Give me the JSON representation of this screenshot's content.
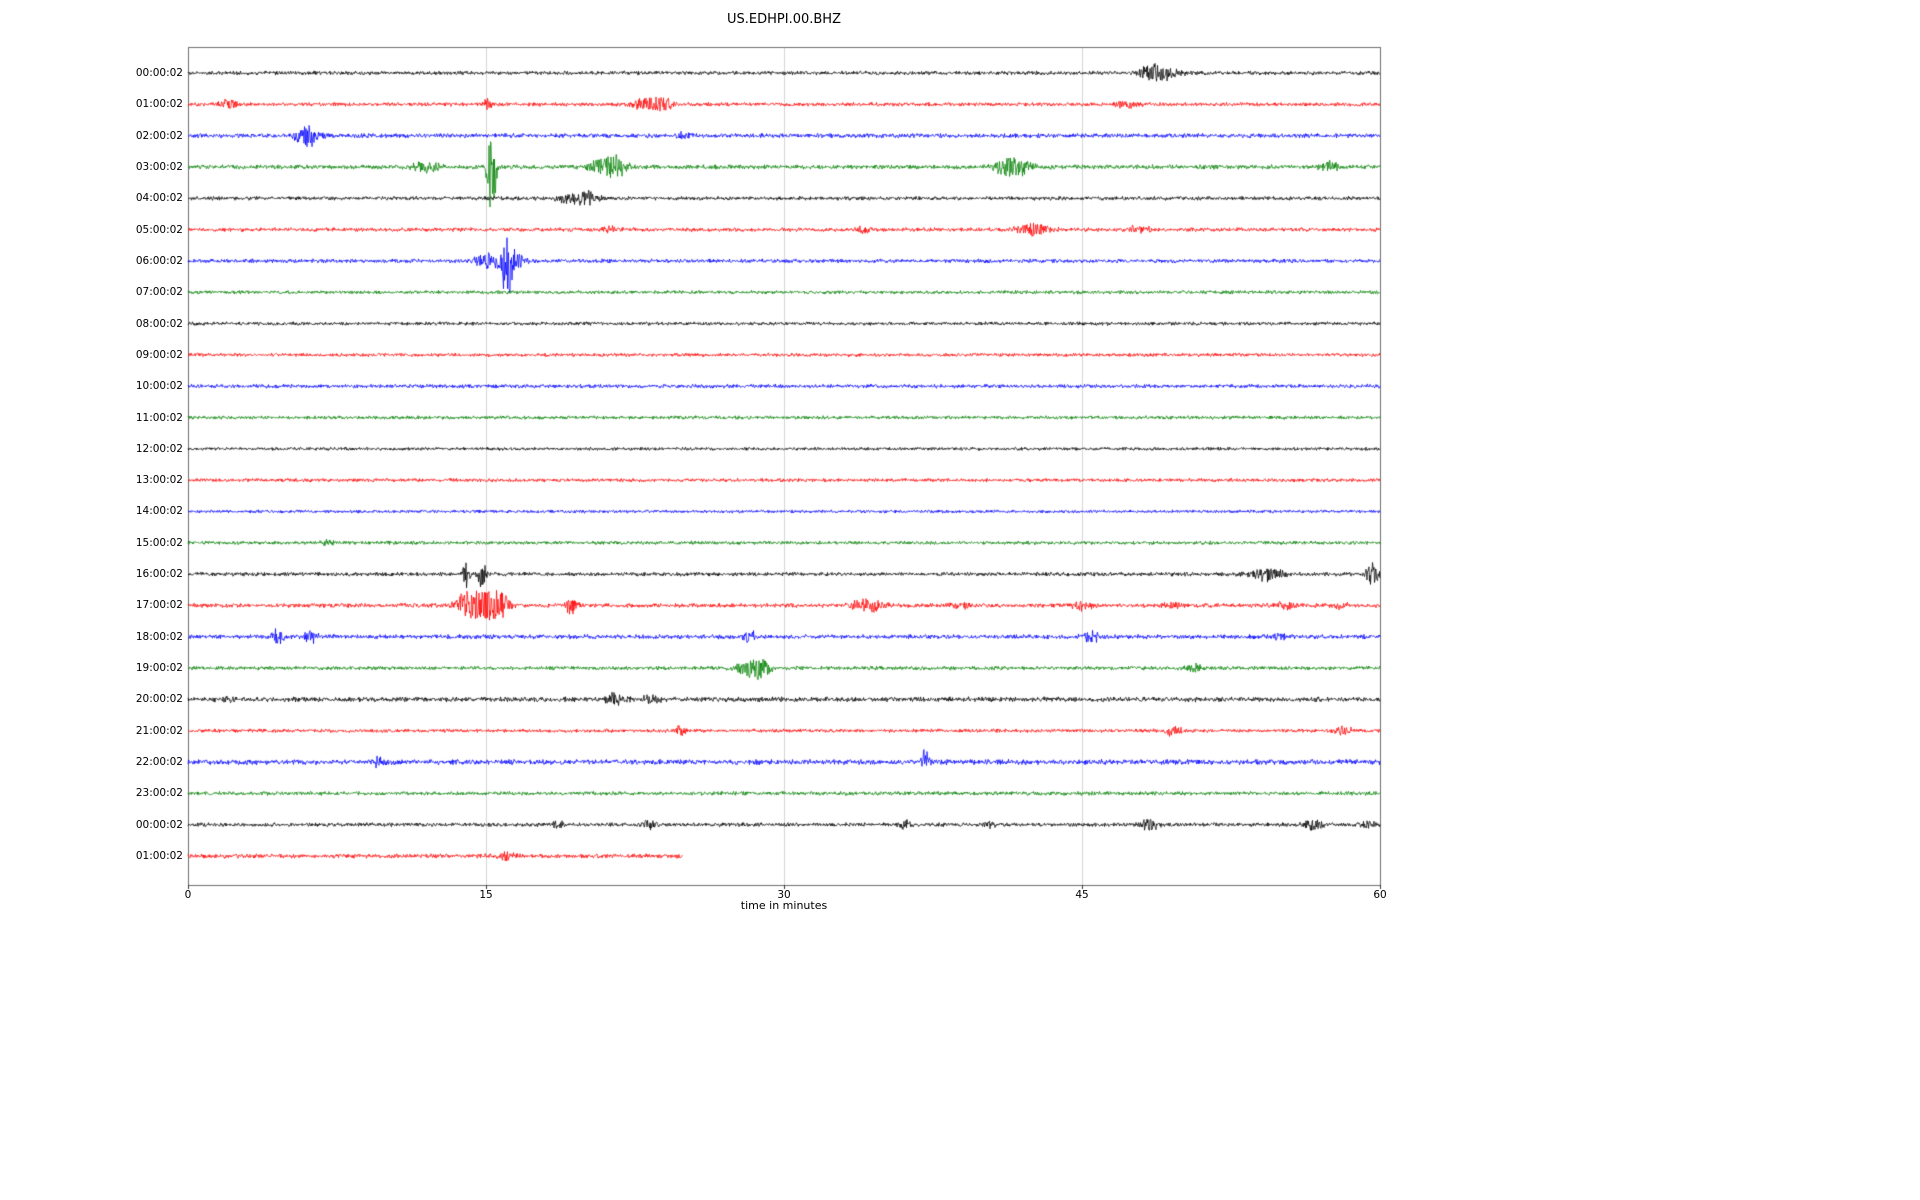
{
  "chart_data": {
    "type": "line",
    "subtype": "helicorder-seismogram",
    "title": "US.EDHPI.00.BHZ",
    "xlabel": "time in minutes",
    "ylabel": "",
    "xlim": [
      0,
      60
    ],
    "x_ticks": [
      0,
      15,
      30,
      45,
      60
    ],
    "grid": true,
    "legend": "none",
    "color_cycle": [
      "#000000",
      "#ff0000",
      "#0000ff",
      "#008000"
    ],
    "rows": [
      {
        "label": "00:00:02",
        "color": "#000000",
        "end_minute": 60,
        "noise": 2.2,
        "events": [
          {
            "m": 48.3,
            "a": 7,
            "w": 0.6
          },
          {
            "m": 49.2,
            "a": 8,
            "w": 0.8
          }
        ]
      },
      {
        "label": "01:00:02",
        "color": "#ff0000",
        "end_minute": 60,
        "noise": 2.2,
        "events": [
          {
            "m": 2.0,
            "a": 6,
            "w": 0.5
          },
          {
            "m": 15.05,
            "a": 6,
            "w": 0.3
          },
          {
            "m": 23.1,
            "a": 7,
            "w": 0.9
          },
          {
            "m": 23.9,
            "a": 5,
            "w": 0.5
          },
          {
            "m": 47.2,
            "a": 5,
            "w": 0.6
          }
        ]
      },
      {
        "label": "02:00:02",
        "color": "#0000ff",
        "end_minute": 60,
        "noise": 2.5,
        "events": [
          {
            "m": 5.9,
            "a": 12,
            "w": 0.5,
            "bias": -0.5
          },
          {
            "m": 6.6,
            "a": 5,
            "w": 0.6
          },
          {
            "m": 24.9,
            "a": 7,
            "w": 0.35
          }
        ]
      },
      {
        "label": "03:00:02",
        "color": "#008000",
        "end_minute": 60,
        "noise": 2.5,
        "events": [
          {
            "m": 12.0,
            "a": 7,
            "w": 0.8
          },
          {
            "m": 15.25,
            "a": 55,
            "w": 0.22,
            "bias": -0.9
          },
          {
            "m": 21.0,
            "a": 10,
            "w": 1.0
          },
          {
            "m": 21.6,
            "a": 6,
            "w": 0.5
          },
          {
            "m": 41.3,
            "a": 14,
            "w": 0.7
          },
          {
            "m": 42.1,
            "a": 6,
            "w": 0.5
          },
          {
            "m": 57.5,
            "a": 7,
            "w": 0.5
          }
        ]
      },
      {
        "label": "04:00:02",
        "color": "#000000",
        "end_minute": 60,
        "noise": 2.2,
        "events": [
          {
            "m": 19.5,
            "a": 8,
            "w": 0.9
          },
          {
            "m": 20.3,
            "a": 5,
            "w": 0.5
          }
        ]
      },
      {
        "label": "05:00:02",
        "color": "#ff0000",
        "end_minute": 60,
        "noise": 2.2,
        "events": [
          {
            "m": 21.2,
            "a": 5,
            "w": 0.5
          },
          {
            "m": 34.0,
            "a": 4,
            "w": 0.4
          },
          {
            "m": 42.5,
            "a": 7,
            "w": 1.0
          },
          {
            "m": 47.9,
            "a": 6,
            "w": 0.6
          }
        ]
      },
      {
        "label": "06:00:02",
        "color": "#0000ff",
        "end_minute": 60,
        "noise": 2.2,
        "events": [
          {
            "m": 15.3,
            "a": 10,
            "w": 0.9
          },
          {
            "m": 16.1,
            "a": 26,
            "w": 0.25,
            "bias": -1
          },
          {
            "m": 16.5,
            "a": 8,
            "w": 0.5
          }
        ]
      },
      {
        "label": "07:00:02",
        "color": "#008000",
        "end_minute": 60,
        "noise": 2.0,
        "events": []
      },
      {
        "label": "08:00:02",
        "color": "#000000",
        "end_minute": 60,
        "noise": 2.0,
        "events": []
      },
      {
        "label": "09:00:02",
        "color": "#ff0000",
        "end_minute": 60,
        "noise": 2.0,
        "events": []
      },
      {
        "label": "10:00:02",
        "color": "#0000ff",
        "end_minute": 60,
        "noise": 2.2,
        "events": []
      },
      {
        "label": "11:00:02",
        "color": "#008000",
        "end_minute": 60,
        "noise": 2.0,
        "events": []
      },
      {
        "label": "12:00:02",
        "color": "#000000",
        "end_minute": 60,
        "noise": 1.8,
        "events": []
      },
      {
        "label": "13:00:02",
        "color": "#ff0000",
        "end_minute": 60,
        "noise": 2.0,
        "events": []
      },
      {
        "label": "14:00:02",
        "color": "#0000ff",
        "end_minute": 60,
        "noise": 1.8,
        "events": []
      },
      {
        "label": "15:00:02",
        "color": "#008000",
        "end_minute": 60,
        "noise": 2.0,
        "events": [
          {
            "m": 7.0,
            "a": 4,
            "w": 0.5
          }
        ]
      },
      {
        "label": "16:00:02",
        "color": "#000000",
        "end_minute": 60,
        "noise": 2.2,
        "events": [
          {
            "m": 14.0,
            "a": 15,
            "w": 0.2
          },
          {
            "m": 14.8,
            "a": 17,
            "w": 0.25
          },
          {
            "m": 54.3,
            "a": 8,
            "w": 0.9
          },
          {
            "m": 59.6,
            "a": 14,
            "w": 0.35
          }
        ]
      },
      {
        "label": "17:00:02",
        "color": "#ff0000",
        "end_minute": 60,
        "noise": 2.5,
        "events": [
          {
            "m": 14.0,
            "a": 13,
            "w": 0.7
          },
          {
            "m": 15.0,
            "a": 17,
            "w": 0.8
          },
          {
            "m": 15.8,
            "a": 11,
            "w": 0.5
          },
          {
            "m": 19.3,
            "a": 10,
            "w": 0.3
          },
          {
            "m": 34.2,
            "a": 9,
            "w": 0.9
          },
          {
            "m": 39.0,
            "a": 5,
            "w": 0.5
          },
          {
            "m": 45.0,
            "a": 5,
            "w": 0.5
          },
          {
            "m": 49.5,
            "a": 5,
            "w": 0.5
          },
          {
            "m": 55.2,
            "a": 7,
            "w": 0.5
          },
          {
            "m": 58.0,
            "a": 4,
            "w": 0.4
          }
        ]
      },
      {
        "label": "18:00:02",
        "color": "#0000ff",
        "end_minute": 60,
        "noise": 2.5,
        "events": [
          {
            "m": 4.5,
            "a": 10,
            "w": 0.3
          },
          {
            "m": 6.2,
            "a": 8,
            "w": 0.35
          },
          {
            "m": 28.3,
            "a": 8,
            "w": 0.3
          },
          {
            "m": 45.5,
            "a": 7,
            "w": 0.5
          },
          {
            "m": 55.0,
            "a": 4,
            "w": 0.4
          }
        ]
      },
      {
        "label": "19:00:02",
        "color": "#008000",
        "end_minute": 60,
        "noise": 2.2,
        "events": [
          {
            "m": 28.3,
            "a": 12,
            "w": 0.7
          },
          {
            "m": 29.0,
            "a": 7,
            "w": 0.4
          },
          {
            "m": 50.6,
            "a": 6,
            "w": 0.4
          }
        ]
      },
      {
        "label": "20:00:02",
        "color": "#000000",
        "end_minute": 60,
        "noise": 2.8,
        "events": [
          {
            "m": 2.0,
            "a": 4,
            "w": 0.4
          },
          {
            "m": 21.5,
            "a": 7,
            "w": 0.6
          },
          {
            "m": 23.3,
            "a": 6,
            "w": 0.5
          }
        ]
      },
      {
        "label": "21:00:02",
        "color": "#ff0000",
        "end_minute": 60,
        "noise": 2.0,
        "events": [
          {
            "m": 24.8,
            "a": 8,
            "w": 0.3
          },
          {
            "m": 49.5,
            "a": 6,
            "w": 0.5
          },
          {
            "m": 58.1,
            "a": 6,
            "w": 0.5
          }
        ]
      },
      {
        "label": "22:00:02",
        "color": "#0000ff",
        "end_minute": 60,
        "noise": 3.0,
        "events": [
          {
            "m": 9.6,
            "a": 6,
            "w": 0.4
          },
          {
            "m": 37.1,
            "a": 9,
            "w": 0.22,
            "bias": 1
          }
        ]
      },
      {
        "label": "23:00:02",
        "color": "#008000",
        "end_minute": 60,
        "noise": 2.2,
        "events": []
      },
      {
        "label": "00:00:02",
        "color": "#000000",
        "end_minute": 60,
        "noise": 2.2,
        "events": [
          {
            "m": 18.6,
            "a": 5,
            "w": 0.4
          },
          {
            "m": 23.2,
            "a": 6,
            "w": 0.4
          },
          {
            "m": 36.1,
            "a": 6,
            "w": 0.3
          },
          {
            "m": 40.4,
            "a": 5,
            "w": 0.3
          },
          {
            "m": 48.4,
            "a": 7,
            "w": 0.5
          },
          {
            "m": 56.6,
            "a": 6,
            "w": 0.5
          },
          {
            "m": 59.4,
            "a": 5,
            "w": 0.4
          }
        ]
      },
      {
        "label": "01:00:02",
        "color": "#ff0000",
        "end_minute": 24.9,
        "noise": 2.5,
        "events": [
          {
            "m": 16.1,
            "a": 6,
            "w": 0.5
          }
        ]
      }
    ]
  }
}
